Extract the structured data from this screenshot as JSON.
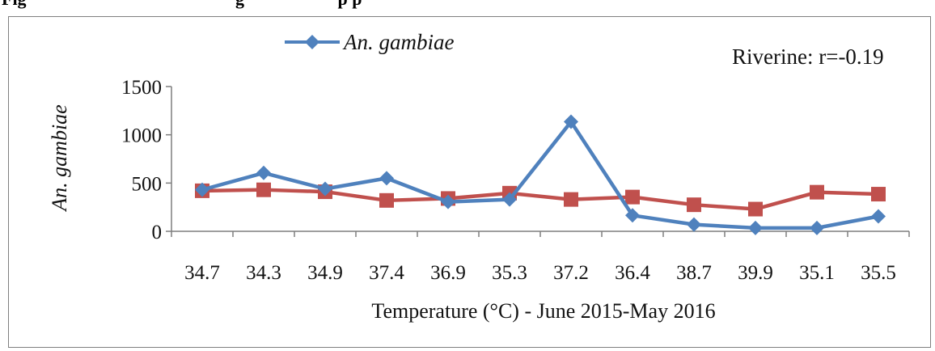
{
  "caption": "Fig                                               g                     p p",
  "chart_data": {
    "type": "line",
    "categories": [
      "34.7",
      "34.3",
      "34.9",
      "37.4",
      "36.9",
      "35.3",
      "37.2",
      "36.4",
      "38.7",
      "39.9",
      "35.1",
      "35.5"
    ],
    "series": [
      {
        "name": "An. gambiae",
        "color": "#4f81bd",
        "marker": "diamond",
        "values": [
          430,
          605,
          440,
          550,
          305,
          330,
          1135,
          165,
          70,
          35,
          35,
          155
        ]
      },
      {
        "name": "",
        "color": "#c0504d",
        "marker": "square",
        "values": [
          420,
          430,
          410,
          320,
          340,
          395,
          330,
          355,
          275,
          230,
          405,
          385
        ]
      }
    ],
    "xlabel": "Temperature (°C) - June 2015-May 2016",
    "ylabel": "An. gambiae",
    "ylim": [
      0,
      1500
    ],
    "yticks": [
      0,
      500,
      1000,
      1500
    ],
    "annotation": "Riverine: r=-0.19",
    "legend_position": "top-left",
    "grid": false
  }
}
